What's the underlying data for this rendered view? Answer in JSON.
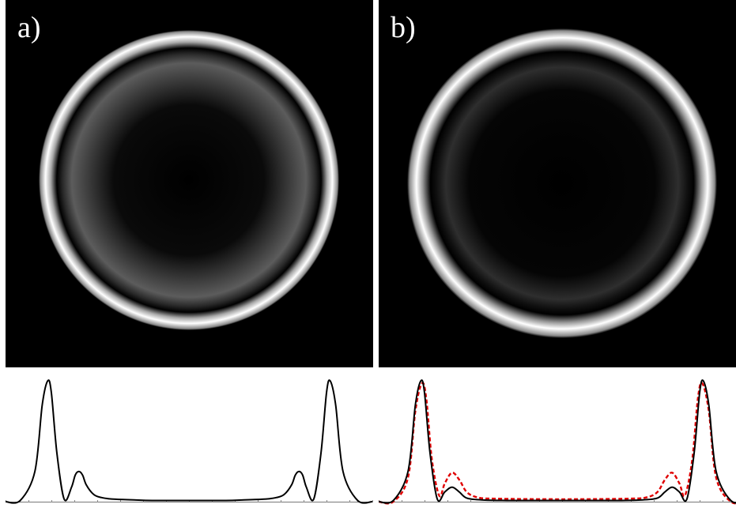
{
  "figure": {
    "panels": [
      {
        "label": "a)",
        "ring_image": {
          "outer_ring_brightness": 1.0,
          "inner_ring_brightness": 0.36,
          "center_brightness": 0.0
        },
        "profile": {
          "curves": [
            {
              "color": "#000000",
              "dash": "solid"
            }
          ]
        }
      },
      {
        "label": "b)",
        "ring_image": {
          "outer_ring_brightness": 1.0,
          "inner_ring_brightness": 0.17,
          "center_brightness": 0.0
        },
        "profile": {
          "curves": [
            {
              "color": "#000000",
              "dash": "solid"
            },
            {
              "color": "#e00000",
              "dash": "dashed"
            }
          ]
        }
      }
    ]
  },
  "chart_data": [
    {
      "type": "line",
      "panel": "a)",
      "xlim": [
        0,
        1
      ],
      "ylim": [
        0,
        1
      ],
      "grid": false,
      "series": [
        {
          "color": "#000000",
          "x": [
            0.0,
            0.04,
            0.08,
            0.1,
            0.115,
            0.125,
            0.14,
            0.16,
            0.18,
            0.19,
            0.2,
            0.21,
            0.22,
            0.24,
            0.26,
            0.28,
            0.3,
            0.35,
            0.4,
            0.5,
            0.6,
            0.65,
            0.7,
            0.72,
            0.74,
            0.76,
            0.78,
            0.79,
            0.8,
            0.81,
            0.82,
            0.84,
            0.86,
            0.875,
            0.885,
            0.9,
            0.92,
            0.96,
            1.0
          ],
          "y": [
            0.0,
            0.01,
            0.25,
            0.8,
            1.0,
            0.9,
            0.4,
            0.02,
            0.12,
            0.22,
            0.25,
            0.22,
            0.14,
            0.06,
            0.035,
            0.025,
            0.02,
            0.015,
            0.01,
            0.01,
            0.01,
            0.015,
            0.02,
            0.025,
            0.035,
            0.06,
            0.14,
            0.22,
            0.25,
            0.22,
            0.12,
            0.02,
            0.4,
            0.9,
            1.0,
            0.8,
            0.25,
            0.01,
            0.0
          ]
        }
      ]
    },
    {
      "type": "line",
      "panel": "b)",
      "xlim": [
        0,
        1
      ],
      "ylim": [
        0,
        1
      ],
      "grid": false,
      "series": [
        {
          "color": "#000000",
          "x": [
            0.0,
            0.04,
            0.08,
            0.1,
            0.115,
            0.125,
            0.14,
            0.16,
            0.18,
            0.2,
            0.22,
            0.24,
            0.28,
            0.35,
            0.5,
            0.65,
            0.72,
            0.76,
            0.78,
            0.8,
            0.82,
            0.84,
            0.86,
            0.875,
            0.885,
            0.9,
            0.92,
            0.96,
            1.0
          ],
          "y": [
            0.0,
            0.01,
            0.25,
            0.8,
            1.0,
            0.9,
            0.4,
            0.02,
            0.08,
            0.12,
            0.08,
            0.03,
            0.015,
            0.01,
            0.01,
            0.01,
            0.015,
            0.03,
            0.08,
            0.12,
            0.08,
            0.02,
            0.4,
            0.9,
            1.0,
            0.8,
            0.25,
            0.01,
            0.0
          ]
        },
        {
          "color": "#e00000",
          "x": [
            0.0,
            0.04,
            0.08,
            0.1,
            0.118,
            0.13,
            0.145,
            0.165,
            0.18,
            0.2,
            0.22,
            0.24,
            0.27,
            0.32,
            0.5,
            0.68,
            0.73,
            0.76,
            0.78,
            0.8,
            0.82,
            0.835,
            0.855,
            0.87,
            0.882,
            0.9,
            0.92,
            0.96,
            1.0
          ],
          "y": [
            0.0,
            0.0,
            0.2,
            0.75,
            0.98,
            0.85,
            0.35,
            0.05,
            0.15,
            0.24,
            0.18,
            0.08,
            0.035,
            0.025,
            0.02,
            0.025,
            0.035,
            0.08,
            0.18,
            0.24,
            0.15,
            0.05,
            0.35,
            0.85,
            0.98,
            0.75,
            0.2,
            0.0,
            0.0
          ]
        }
      ]
    }
  ]
}
